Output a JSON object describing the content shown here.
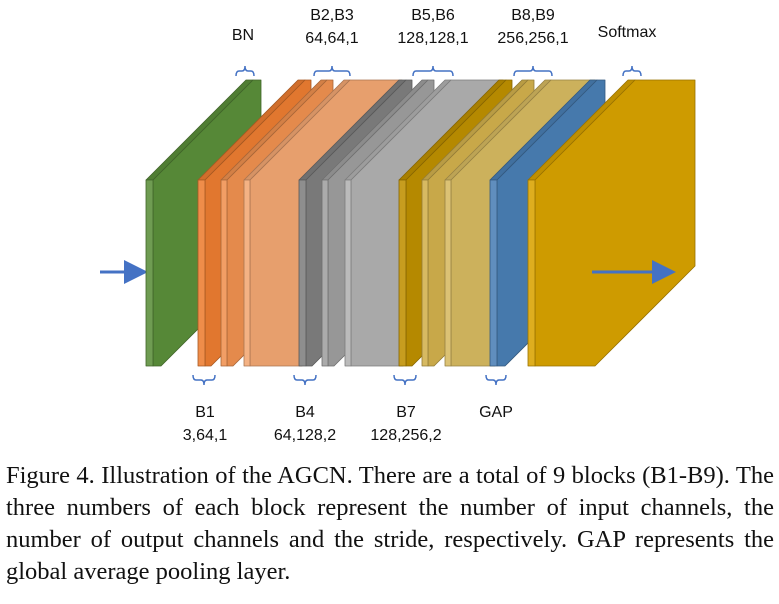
{
  "diagram": {
    "top_labels": {
      "bn": "BN",
      "b2b3": {
        "name": "B2,B3",
        "params": "64,64,1"
      },
      "b5b6": {
        "name": "B5,B6",
        "params": "128,128,1"
      },
      "b8b9": {
        "name": "B8,B9",
        "params": "256,256,1"
      },
      "softmax": "Softmax"
    },
    "bottom_labels": {
      "b1": {
        "name": "B1",
        "params": "3,64,1"
      },
      "b4": {
        "name": "B4",
        "params": "64,128,2"
      },
      "b7": {
        "name": "B7",
        "params": "128,256,2"
      },
      "gap": "GAP"
    },
    "colors": {
      "green": "#5b8f3a",
      "orange": "#ed7d31",
      "gray": "#7f7f7f",
      "gold": "#bf9000",
      "blue": "#4a7fb5",
      "softmax": "#d9a300",
      "arrow": "#4472c4"
    }
  },
  "caption": "Figure 4. Illustration of the AGCN. There are a total of 9 blocks (B1-B9). The three numbers of each block represent the number of input channels, the number of output channels and the stride, respectively. GAP represents the global average pooling layer."
}
